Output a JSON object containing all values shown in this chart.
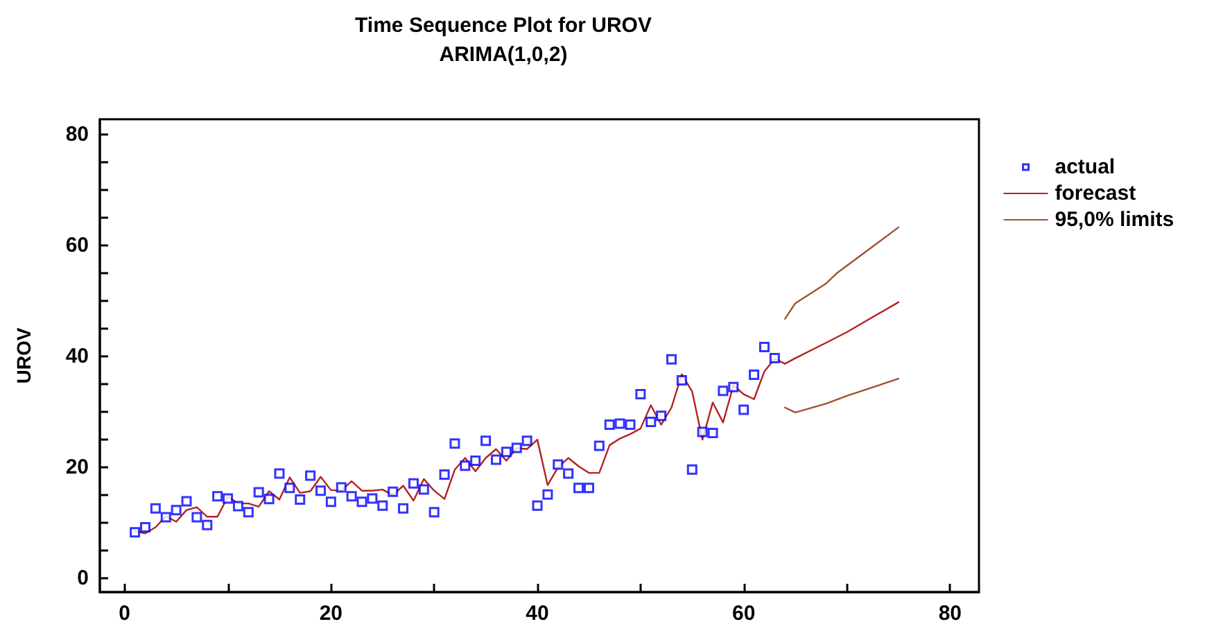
{
  "chart_data": {
    "type": "scatter",
    "title": "Time Sequence Plot for UROV",
    "subtitle": "ARIMA(1,0,2)",
    "ylabel": "UROV",
    "xlim": [
      -2.4,
      82.8
    ],
    "ylim": [
      -2.5,
      82.8
    ],
    "xticks": [
      0,
      {
        "value": 10,
        "label": null
      },
      20,
      {
        "value": 30,
        "label": null
      },
      40,
      {
        "value": 50,
        "label": null
      },
      60,
      {
        "value": 70,
        "label": null
      },
      80
    ],
    "yticks": [
      0,
      {
        "value": 5,
        "label": null
      },
      {
        "value": 10,
        "label": null
      },
      {
        "value": 15,
        "label": null
      },
      20,
      {
        "value": 25,
        "label": null
      },
      {
        "value": 30,
        "label": null
      },
      {
        "value": 35,
        "label": null
      },
      40,
      {
        "value": 45,
        "label": null
      },
      {
        "value": 50,
        "label": null
      },
      {
        "value": 55,
        "label": null
      },
      60,
      {
        "value": 65,
        "label": null
      },
      {
        "value": 70,
        "label": null
      },
      {
        "value": 75,
        "label": null
      },
      80
    ],
    "grid": false,
    "legend": "right",
    "series": [
      {
        "name": "actual",
        "marker": "square",
        "color": "#0000ff",
        "x": [
          1,
          2,
          3,
          4,
          5,
          6,
          7,
          8,
          9,
          10,
          11,
          12,
          13,
          14,
          15,
          16,
          17,
          18,
          19,
          20,
          21,
          22,
          23,
          24,
          25,
          26,
          27,
          28,
          29,
          30,
          31,
          32,
          33,
          34,
          35,
          36,
          37,
          38,
          39,
          40,
          41,
          42,
          43,
          44,
          45,
          46,
          47,
          48,
          49,
          50,
          51,
          52,
          53,
          54,
          55,
          56,
          57,
          58,
          59,
          60,
          61,
          62,
          63
        ],
        "values": [
          8.3,
          9.2,
          12.6,
          11.0,
          12.3,
          13.9,
          11.0,
          9.6,
          14.8,
          14.4,
          13.0,
          11.9,
          15.5,
          14.3,
          18.9,
          16.3,
          14.2,
          18.5,
          15.8,
          13.8,
          16.4,
          14.8,
          13.8,
          14.4,
          13.1,
          15.6,
          12.6,
          17.1,
          16.0,
          11.9,
          18.7,
          24.3,
          20.3,
          21.2,
          24.8,
          21.4,
          22.8,
          23.5,
          24.8,
          13.1,
          15.1,
          20.5,
          18.9,
          16.3,
          16.3,
          23.9,
          27.7,
          27.9,
          27.7,
          33.2,
          28.2,
          29.3,
          39.5,
          35.7,
          19.6,
          26.4,
          26.2,
          33.8,
          34.5,
          30.4,
          36.7,
          41.7,
          39.7
        ]
      },
      {
        "name": "forecast",
        "type": "line",
        "marker": "none",
        "color": "#b22222",
        "x": [
          1,
          2,
          3,
          4,
          5,
          6,
          7,
          8,
          9,
          10,
          11,
          12,
          13,
          14,
          15,
          16,
          17,
          18,
          19,
          20,
          21,
          22,
          23,
          24,
          25,
          26,
          27,
          28,
          29,
          30,
          31,
          32,
          33,
          34,
          35,
          36,
          37,
          38,
          39,
          40,
          41,
          42,
          43,
          44,
          45,
          46,
          47,
          48,
          49,
          50,
          51,
          52,
          53,
          54,
          55,
          56,
          57,
          58,
          59,
          60,
          61,
          62,
          63,
          64,
          65,
          68,
          70,
          75
        ],
        "values": [
          8.5,
          8.1,
          9.2,
          11.2,
          10.2,
          12.3,
          12.8,
          11.1,
          11.1,
          14.7,
          13.5,
          13.5,
          12.9,
          15.7,
          14.2,
          18.2,
          15.4,
          15.7,
          18.3,
          15.9,
          15.8,
          17.5,
          15.8,
          15.8,
          16.0,
          15.0,
          16.7,
          14.0,
          17.9,
          15.8,
          14.3,
          19.6,
          21.7,
          19.3,
          21.7,
          23.3,
          21.2,
          23.5,
          23.3,
          25.0,
          16.8,
          20.0,
          21.7,
          20.2,
          19.0,
          19.0,
          24.0,
          25.2,
          26.0,
          27.0,
          31.2,
          27.7,
          30.8,
          36.8,
          33.7,
          25.0,
          31.7,
          28.1,
          34.8,
          33.2,
          32.3,
          37.3,
          39.6,
          38.7,
          39.7,
          42.5,
          44.4,
          49.8
        ]
      },
      {
        "name": "95,0% limits",
        "type": "line",
        "marker": "none",
        "color": "#a0522d",
        "x": [
          64,
          65,
          68,
          69,
          75
        ],
        "values": [
          46.8,
          49.6,
          53.2,
          55.0,
          63.3
        ]
      },
      {
        "type": "line",
        "marker": "none",
        "color": "#a0522d",
        "x": [
          64,
          65,
          68,
          70,
          75
        ],
        "values": [
          30.8,
          29.9,
          31.5,
          32.9,
          36.0
        ]
      }
    ]
  }
}
